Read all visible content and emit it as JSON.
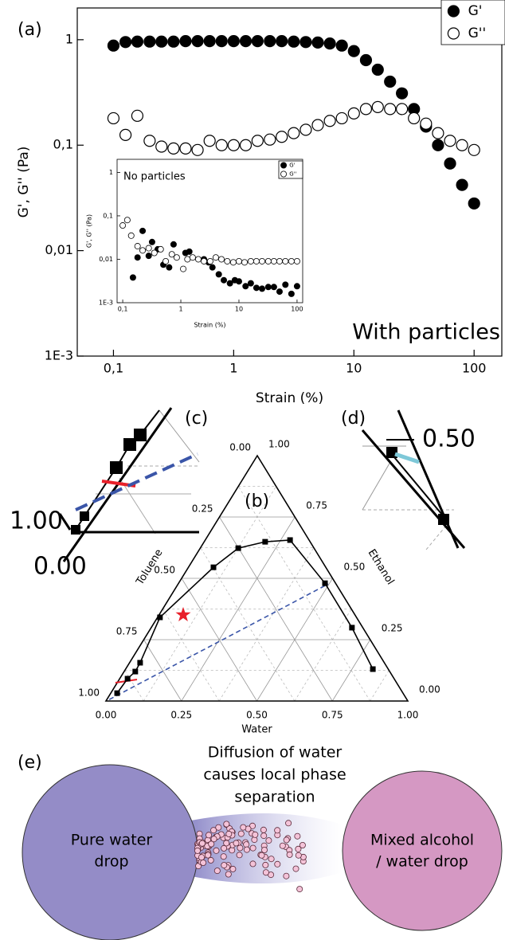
{
  "chart_data": [
    {
      "type": "scatter",
      "title": "(a)",
      "x_label": "Strain (%)",
      "y_label": "G', G'' (Pa)",
      "annotation": "With particles",
      "log_x": true,
      "log_y": true,
      "xlim": [
        0.05,
        170
      ],
      "ylim": [
        0.001,
        2
      ],
      "xticks": [
        {
          "value": 0.1,
          "label": "0,1"
        },
        1,
        10,
        100
      ],
      "yticks": [
        {
          "value": 0.001,
          "label": "1E-3"
        },
        {
          "value": 0.01,
          "label": "0,01"
        },
        {
          "value": 0.1,
          "label": "0,1"
        },
        1
      ],
      "legend": "top-right",
      "series": [
        {
          "name": "G'",
          "color": "#000000",
          "marker": "filled",
          "x": [
            0.1,
            0.126,
            0.158,
            0.2,
            0.251,
            0.316,
            0.398,
            0.501,
            0.631,
            0.794,
            1,
            1.26,
            1.58,
            2,
            2.51,
            3.16,
            3.98,
            5.01,
            6.31,
            7.94,
            10,
            12.6,
            15.8,
            20,
            25.1,
            31.6,
            39.8,
            50.1,
            63.1,
            79.4,
            100
          ],
          "values": [
            0.88,
            0.95,
            0.96,
            0.96,
            0.96,
            0.96,
            0.97,
            0.97,
            0.97,
            0.97,
            0.97,
            0.97,
            0.97,
            0.97,
            0.97,
            0.96,
            0.95,
            0.94,
            0.92,
            0.88,
            0.78,
            0.64,
            0.52,
            0.4,
            0.31,
            0.22,
            0.15,
            0.1,
            0.067,
            0.042,
            0.028
          ]
        },
        {
          "name": "G''",
          "color": "#000000",
          "marker": "open",
          "x": [
            0.1,
            0.126,
            0.158,
            0.2,
            0.251,
            0.316,
            0.398,
            0.501,
            0.631,
            0.794,
            1,
            1.26,
            1.58,
            2,
            2.51,
            3.16,
            3.98,
            5.01,
            6.31,
            7.94,
            10,
            12.6,
            15.8,
            20,
            25.1,
            31.6,
            39.8,
            50.1,
            63.1,
            79.4,
            100
          ],
          "values": [
            0.18,
            0.125,
            0.19,
            0.11,
            0.097,
            0.093,
            0.093,
            0.09,
            0.11,
            0.1,
            0.1,
            0.1,
            0.11,
            0.113,
            0.12,
            0.13,
            0.14,
            0.155,
            0.17,
            0.18,
            0.2,
            0.22,
            0.23,
            0.22,
            0.22,
            0.18,
            0.16,
            0.13,
            0.11,
            0.1,
            0.09
          ]
        }
      ]
    },
    {
      "type": "scatter",
      "x_label": "Strain (%)",
      "y_label": "G', G'' (Pa)",
      "annotation": "No particles",
      "log_x": true,
      "log_y": true,
      "xlim": [
        0.08,
        125
      ],
      "ylim": [
        0.001,
        2
      ],
      "xticks": [
        {
          "value": 0.1,
          "label": "0,1"
        },
        1,
        10,
        100
      ],
      "yticks": [
        {
          "value": 0.001,
          "label": "1E-3"
        },
        {
          "value": 0.01,
          "label": "0,01"
        },
        {
          "value": 0.1,
          "label": "0,1"
        },
        1
      ],
      "legend": "top-right",
      "series": [
        {
          "name": "G'",
          "color": "#000000",
          "marker": "filled",
          "x": [
            0.15,
            0.18,
            0.22,
            0.28,
            0.32,
            0.4,
            0.5,
            0.63,
            0.75,
            1.2,
            1.4,
            2.5,
            3,
            3.5,
            4.5,
            5.5,
            7,
            8.5,
            10,
            13,
            16,
            20,
            25,
            32,
            40,
            50,
            63,
            80,
            100
          ],
          "values": [
            0.0038,
            0.011,
            0.045,
            0.012,
            0.025,
            0.017,
            0.0075,
            0.0065,
            0.022,
            0.014,
            0.015,
            0.01,
            0.0085,
            0.0065,
            0.0045,
            0.0033,
            0.0028,
            0.0033,
            0.0031,
            0.0024,
            0.0028,
            0.0022,
            0.0021,
            0.0023,
            0.0023,
            0.0018,
            0.0026,
            0.0016,
            0.0024
          ]
        },
        {
          "name": "G''",
          "color": "#000000",
          "marker": "open",
          "x": [
            0.1,
            0.12,
            0.14,
            0.18,
            0.22,
            0.28,
            0.35,
            0.45,
            0.55,
            0.7,
            0.85,
            1.1,
            1.3,
            1.6,
            2,
            2.5,
            3.2,
            4,
            5,
            6.3,
            8,
            10,
            12.5,
            16,
            20,
            25,
            32,
            40,
            50,
            63,
            80,
            100
          ],
          "values": [
            0.06,
            0.08,
            0.035,
            0.02,
            0.016,
            0.018,
            0.014,
            0.017,
            0.009,
            0.013,
            0.011,
            0.006,
            0.01,
            0.011,
            0.01,
            0.009,
            0.009,
            0.011,
            0.01,
            0.009,
            0.0085,
            0.009,
            0.0085,
            0.009,
            0.009,
            0.009,
            0.009,
            0.009,
            0.009,
            0.009,
            0.009,
            0.009
          ]
        }
      ]
    },
    {
      "type": "ternary",
      "title": "(b)",
      "bottom_label": "Water",
      "right_label": "Ethanol",
      "left_label": "Toluene",
      "ticks": [
        {
          "value": 0,
          "label": "0.00"
        },
        {
          "value": 0.25,
          "label": "0.25"
        },
        {
          "value": 0.5,
          "label": "0.50"
        },
        {
          "value": 0.75,
          "label": "0.75"
        },
        {
          "value": 1,
          "label": "1.00"
        }
      ],
      "binodal": {
        "color": "#000000",
        "water": [
          0.021,
          0.026,
          0.037,
          0.035,
          0.008,
          0.083,
          0.126,
          0.202,
          0.281,
          0.485,
          0.665,
          0.819
        ],
        "ethanol": [
          0.032,
          0.091,
          0.12,
          0.156,
          0.341,
          0.545,
          0.623,
          0.649,
          0.656,
          0.48,
          0.299,
          0.13
        ]
      },
      "tie_line": {
        "color": "#3a55a8",
        "water": [
          0.008,
          0.497
        ],
        "ethanol": [
          0.006,
          0.477
        ]
      },
      "star": {
        "color": "#e8202a",
        "water": 0.08,
        "ethanol": 0.351
      }
    }
  ],
  "zooms": {
    "c": {
      "label": "(c)",
      "tick_top": "1.00",
      "tick_bottom": "0.00"
    },
    "d": {
      "label": "(d)",
      "tick": "0.50"
    }
  },
  "panel_e": {
    "label": "(e)",
    "caption": [
      "Diffusion of water",
      "causes local phase",
      "separation"
    ],
    "left_drop": [
      "Pure water",
      "drop"
    ],
    "right_drop": [
      "Mixed alcohol",
      "/ water drop"
    ]
  }
}
